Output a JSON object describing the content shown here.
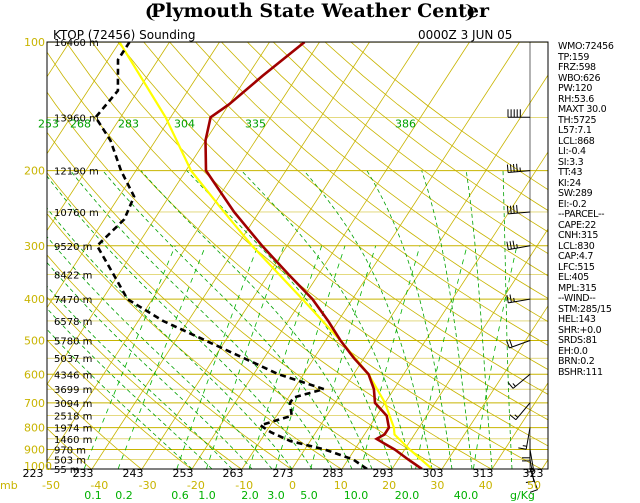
{
  "header": {
    "banner_title": "Plymouth State Weather Center",
    "station": "KTOP (72456) Sounding",
    "time": "0000Z  3 JUN 05"
  },
  "colors": {
    "isobar": "#c8b400",
    "isotherm": "#c8b400",
    "dry_adiabat": "#c8b400",
    "moist_adiabat": "#00a000",
    "mixing_ratio": "#00b000",
    "temperature": "#a00000",
    "dewpoint": "#000000",
    "parcel": "#ffff00",
    "axis_label": "#c8b400",
    "theta_label": "#00a000"
  },
  "icons": {
    "banner_left": "lightning-bolt-icon",
    "banner_right": "lightning-bolt-icon"
  },
  "chart_data": {
    "type": "skew-t log-p diagram",
    "title": "KTOP (72456) Sounding",
    "pressure_levels_mb": [
      100,
      200,
      300,
      400,
      500,
      600,
      700,
      800,
      900,
      1000
    ],
    "pressure_tick_labels": [
      "100",
      "200",
      "300",
      "400",
      "500",
      "600",
      "700",
      "800",
      "900",
      "1000"
    ],
    "pressure_axis_unit": "mb",
    "height_labels": [
      {
        "p": 100,
        "label": "16460 m"
      },
      {
        "p": 150,
        "label": "13960 m"
      },
      {
        "p": 200,
        "label": "12190 m"
      },
      {
        "p": 250,
        "label": "10760 m"
      },
      {
        "p": 300,
        "label": "9520 m"
      },
      {
        "p": 350,
        "label": "8422 m"
      },
      {
        "p": 400,
        "label": "7470 m"
      },
      {
        "p": 450,
        "label": "6578 m"
      },
      {
        "p": 500,
        "label": "5780 m"
      },
      {
        "p": 550,
        "label": "5037 m"
      },
      {
        "p": 600,
        "label": "4346 m"
      },
      {
        "p": 650,
        "label": "3699 m"
      },
      {
        "p": 700,
        "label": "3094 m"
      },
      {
        "p": 750,
        "label": "2518 m"
      },
      {
        "p": 800,
        "label": "1974 m"
      },
      {
        "p": 850,
        "label": "1460 m"
      },
      {
        "p": 900,
        "label": "970 m"
      },
      {
        "p": 950,
        "label": "503 m"
      },
      {
        "p": 1000,
        "label": "55 m"
      }
    ],
    "temperature_ticks_c": [
      -50,
      -40,
      -30,
      -20,
      -10,
      0,
      10,
      20,
      30,
      40,
      50
    ],
    "temperature_tick_labels": [
      "-50",
      "-40",
      "-30",
      "-20",
      "-10",
      "0",
      "10",
      "20",
      "30",
      "40",
      "50"
    ],
    "potential_temperature_labels_bottom_k": [
      "223",
      "233",
      "243",
      "253",
      "263",
      "273",
      "283",
      "293",
      "303",
      "313",
      "323"
    ],
    "potential_temperature_labels_150mb_k": [
      "253",
      "268",
      "283",
      "304",
      "335",
      "386"
    ],
    "mixing_ratio_labels": [
      "0.1",
      "0.2",
      "0.6",
      "1.0",
      "2.0",
      "3.0",
      "5.0",
      "10.0",
      "20.0",
      "40.0"
    ],
    "mixing_ratio_values": [
      0.1,
      0.2,
      0.6,
      1.0,
      2.0,
      3.0,
      5.0,
      10.0,
      20.0,
      40.0
    ],
    "mixing_ratio_unit": "g/Kg",
    "temperature_profile": [
      {
        "p": 100,
        "t": -53
      },
      {
        "p": 120,
        "t": -57
      },
      {
        "p": 140,
        "t": -60
      },
      {
        "p": 150,
        "t": -62
      },
      {
        "p": 170,
        "t": -60
      },
      {
        "p": 200,
        "t": -56
      },
      {
        "p": 250,
        "t": -45
      },
      {
        "p": 300,
        "t": -35
      },
      {
        "p": 350,
        "t": -26
      },
      {
        "p": 400,
        "t": -18
      },
      {
        "p": 450,
        "t": -12
      },
      {
        "p": 500,
        "t": -7
      },
      {
        "p": 550,
        "t": -2
      },
      {
        "p": 600,
        "t": 3
      },
      {
        "p": 650,
        "t": 6
      },
      {
        "p": 700,
        "t": 8
      },
      {
        "p": 750,
        "t": 12
      },
      {
        "p": 800,
        "t": 14
      },
      {
        "p": 830,
        "t": 14
      },
      {
        "p": 850,
        "t": 13
      },
      {
        "p": 870,
        "t": 15
      },
      {
        "p": 900,
        "t": 18
      },
      {
        "p": 950,
        "t": 22
      },
      {
        "p": 1000,
        "t": 26
      }
    ],
    "dewpoint_profile": [
      {
        "p": 100,
        "td": -88
      },
      {
        "p": 110,
        "td": -88
      },
      {
        "p": 130,
        "td": -84
      },
      {
        "p": 150,
        "td": -85
      },
      {
        "p": 170,
        "td": -79
      },
      {
        "p": 200,
        "td": -73
      },
      {
        "p": 230,
        "td": -67
      },
      {
        "p": 260,
        "td": -66
      },
      {
        "p": 300,
        "td": -68
      },
      {
        "p": 350,
        "td": -61
      },
      {
        "p": 400,
        "td": -55
      },
      {
        "p": 450,
        "td": -45
      },
      {
        "p": 500,
        "td": -34
      },
      {
        "p": 550,
        "td": -24
      },
      {
        "p": 600,
        "td": -15
      },
      {
        "p": 650,
        "td": -4
      },
      {
        "p": 680,
        "td": -9
      },
      {
        "p": 700,
        "td": -9
      },
      {
        "p": 750,
        "td": -7
      },
      {
        "p": 790,
        "td": -12
      },
      {
        "p": 820,
        "td": -9
      },
      {
        "p": 860,
        "td": -4
      },
      {
        "p": 900,
        "td": 4
      },
      {
        "p": 950,
        "td": 11
      },
      {
        "p": 1000,
        "td": 15
      }
    ],
    "parcel_profile": [
      {
        "p": 100,
        "t": -90
      },
      {
        "p": 150,
        "t": -71
      },
      {
        "p": 200,
        "t": -59
      },
      {
        "p": 250,
        "t": -47
      },
      {
        "p": 300,
        "t": -37
      },
      {
        "p": 400,
        "t": -20
      },
      {
        "p": 500,
        "t": -7
      },
      {
        "p": 600,
        "t": 3
      },
      {
        "p": 700,
        "t": 10
      },
      {
        "p": 800,
        "t": 15
      },
      {
        "p": 830,
        "t": 16
      },
      {
        "p": 900,
        "t": 21
      },
      {
        "p": 1000,
        "t": 28
      }
    ],
    "wind_barbs": [
      {
        "p": 150,
        "dir": 270,
        "spd": 50
      },
      {
        "p": 200,
        "dir": 265,
        "spd": 45
      },
      {
        "p": 250,
        "dir": 265,
        "spd": 40
      },
      {
        "p": 300,
        "dir": 260,
        "spd": 35
      },
      {
        "p": 400,
        "dir": 260,
        "spd": 25
      },
      {
        "p": 500,
        "dir": 250,
        "spd": 20
      },
      {
        "p": 600,
        "dir": 230,
        "spd": 15
      },
      {
        "p": 700,
        "dir": 220,
        "spd": 15
      },
      {
        "p": 800,
        "dir": 190,
        "spd": 15
      },
      {
        "p": 850,
        "dir": 180,
        "spd": 20
      },
      {
        "p": 900,
        "dir": 170,
        "spd": 15
      },
      {
        "p": 950,
        "dir": 170,
        "spd": 10
      },
      {
        "p": 1000,
        "dir": 160,
        "spd": 10
      }
    ],
    "temperature_axis_unit": "C",
    "potential_temperature_unit": "K"
  },
  "indices": [
    "WMO:72456",
    "TP:159",
    "FRZ:598",
    "WBO:626",
    "PW:120",
    "RH:53.6",
    "MAXT 30.0",
    "TH:5725",
    "L57:7.1",
    "LCL:868",
    "LI:-0.4",
    "SI:3.3",
    "TT:43",
    "KI:24",
    "SW:289",
    "EI:-0.2",
    "--PARCEL--",
    "CAPE:22",
    "CNH:315",
    "LCL:830",
    "CAP:4.7",
    "LFC:515",
    "EL:405",
    "MPL:315",
    "--WIND--",
    "STM:285/15",
    "HEL:143",
    "SHR:+0.0",
    "SRDS:81",
    "EH:0.0",
    "BRN:0.2",
    "BSHR:111"
  ]
}
